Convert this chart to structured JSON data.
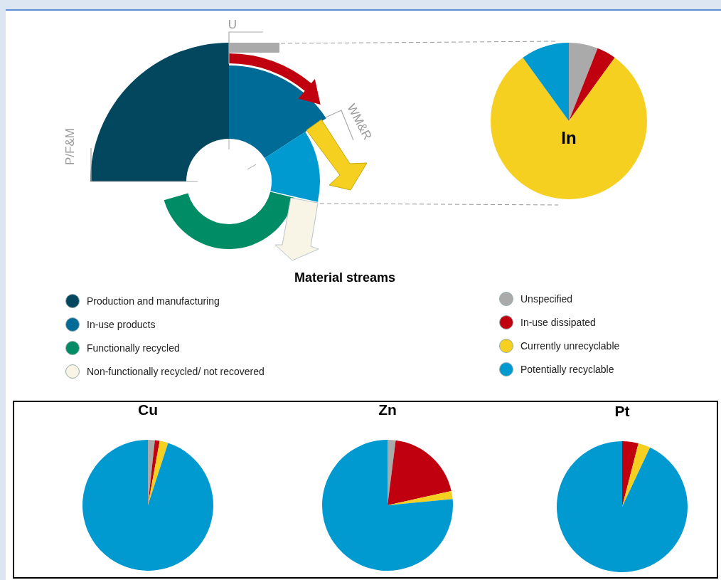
{
  "chart_data": [
    {
      "type": "other",
      "title": "Material streams",
      "categories": [
        "Production and manufacturing",
        "In-use products",
        "Functionally recycled",
        "Non-functionally recycled/ not recovered"
      ],
      "colors": [
        "#02475e",
        "#006b96",
        "#008c64",
        "#f8f5e6"
      ],
      "annotations": [
        "U",
        "WM&R",
        "P/F&M"
      ]
    },
    {
      "type": "pie",
      "title": "In",
      "categories": [
        "Unspecified",
        "In-use dissipated",
        "Currently unrecyclable",
        "Potentially recyclable"
      ],
      "values": [
        6,
        4,
        80,
        10
      ],
      "colors": [
        "#aaaaaa",
        "#c0000f",
        "#f5d020",
        "#0099d0"
      ],
      "legend": "bottom left"
    },
    {
      "type": "pie",
      "title": "Cu",
      "categories": [
        null,
        null,
        null,
        null
      ],
      "values": [
        1.7,
        1.2,
        2.1,
        95
      ],
      "colors": [
        "#aaaaaa",
        "#c0000f",
        "#f5d020",
        "#0099d0"
      ]
    },
    {
      "type": "pie",
      "title": "Zn",
      "categories": [
        null,
        null,
        null,
        null
      ],
      "values": [
        2,
        19.5,
        2,
        76.5
      ],
      "colors": [
        "#aaaaaa",
        "#c0000f",
        "#f5d020",
        "#0099d0"
      ]
    },
    {
      "type": "pie",
      "title": "Pt",
      "categories": [
        null,
        null,
        null,
        null
      ],
      "values": [
        0,
        4,
        3,
        93
      ],
      "colors": [
        "#aaaaaa",
        "#c0000f",
        "#f5d020",
        "#0099d0"
      ]
    }
  ]
}
